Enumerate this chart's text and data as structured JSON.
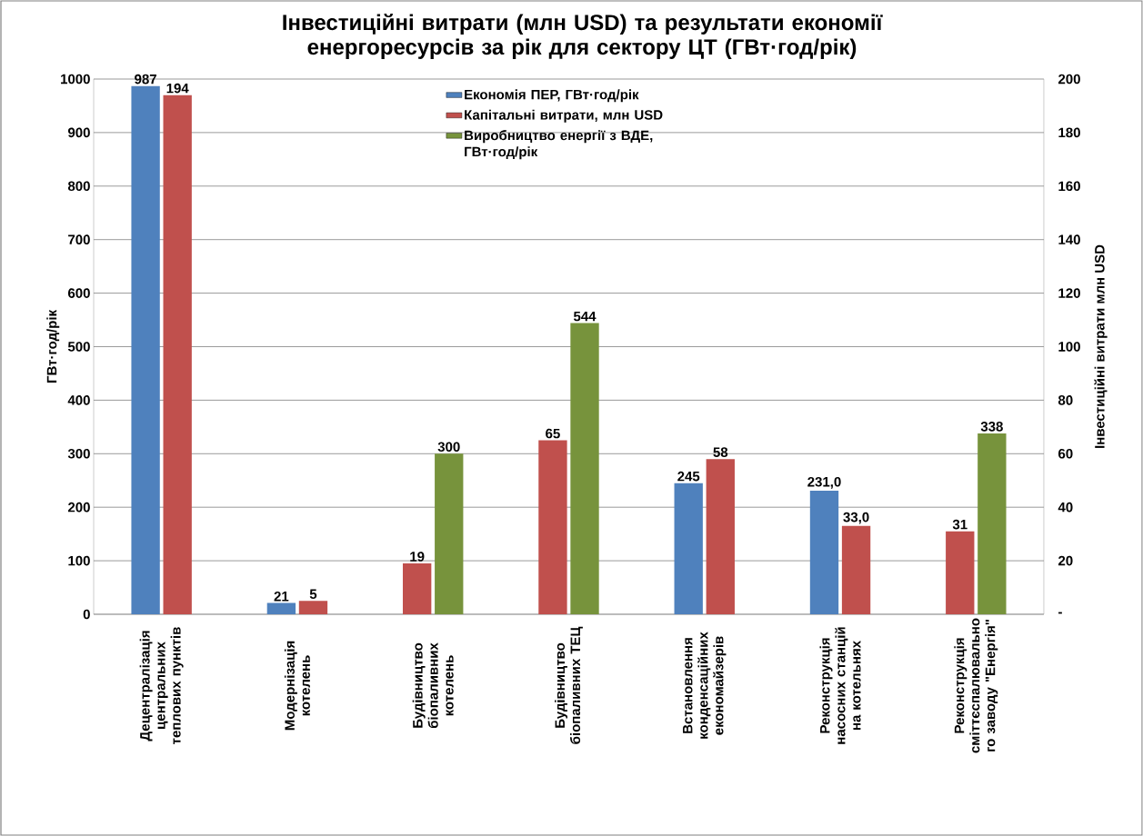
{
  "chart_data": {
    "type": "bar",
    "title": "Інвестиційні витрати (млн USD)  та результати економії енергоресурсів за рік для сектору ЦТ (ГВт·год/рік)",
    "ylabel": "ГВт·год/рік",
    "y2label": "Інвестиційні витрати млн USD",
    "categories": [
      "Децентралізація центральних теплових пунктів",
      "Модернізація котелень",
      "Будівництво біопаливних котелень",
      "Будівництво біопаливних ТЕЦ",
      "Встановлення конденсаційних економайзерів",
      "Реконструкція насосних станцій на котельнях",
      "Реконструкція сміттєспалювально го заводу \"Енергія\""
    ],
    "series": [
      {
        "name": "Економія ПЕР, ГВт·год/рік",
        "color": "#4f81bd",
        "values": [
          987,
          21,
          null,
          null,
          245,
          231.0,
          null
        ],
        "value_labels": [
          "987",
          "21",
          null,
          null,
          "245",
          "231,0",
          null
        ]
      },
      {
        "name": "Капітальні витрати, млн USD",
        "color": "#c0504d",
        "axis": "y2",
        "values": [
          194,
          5,
          19,
          65,
          58,
          33.0,
          31
        ],
        "value_labels": [
          "194",
          "5",
          "19",
          "65",
          "58",
          "33,0",
          "31"
        ]
      },
      {
        "name": "Виробництво енергії з ВДЕ, ГВт·год/рік",
        "color": "#77933c",
        "values": [
          null,
          null,
          300,
          544,
          null,
          null,
          338
        ],
        "value_labels": [
          null,
          null,
          "300",
          "544",
          null,
          null,
          "338"
        ]
      }
    ],
    "ylim": [
      0,
      1000
    ],
    "yticks": [
      0,
      100,
      200,
      300,
      400,
      500,
      600,
      700,
      800,
      900,
      1000
    ],
    "y2lim": [
      0,
      200
    ],
    "y2ticks": [
      {
        "value": 0,
        "label": "-"
      },
      20,
      40,
      60,
      80,
      100,
      120,
      140,
      160,
      180,
      200
    ],
    "grid": "y",
    "legend": "top"
  }
}
